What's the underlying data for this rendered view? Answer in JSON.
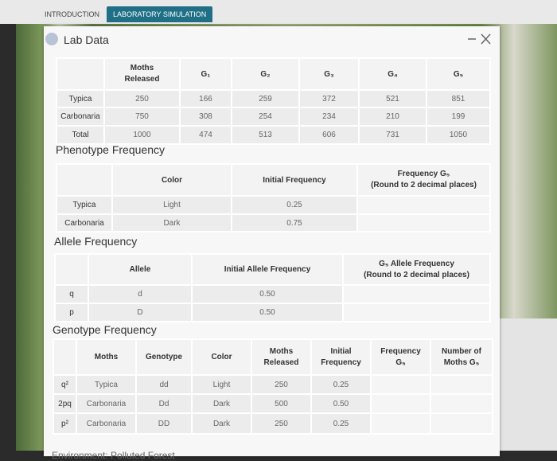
{
  "tabs": [
    "INTRODUCTION",
    "LABORATORY SIMULATION"
  ],
  "panel": {
    "title": "Lab Data",
    "footer": "Environment: Polluted Forest"
  },
  "results": {
    "columns": [
      [
        "Moths",
        "Released"
      ],
      "G₁",
      "G₂",
      "G₃",
      "G₄",
      "G₅"
    ],
    "rows": [
      {
        "label": "Typica",
        "cells": [
          "250",
          "166",
          "259",
          "372",
          "521",
          "851"
        ]
      },
      {
        "label": "Carbonaria",
        "cells": [
          "750",
          "308",
          "254",
          "234",
          "210",
          "199"
        ]
      },
      {
        "label": "Total",
        "cells": [
          "1000",
          "474",
          "513",
          "606",
          "731",
          "1050"
        ]
      }
    ]
  },
  "phenotype": {
    "title": "Phenotype Frequency",
    "columns": [
      "Color",
      "Initial Frequency",
      [
        "Frequency G₅",
        "(Round to 2 decimal places)"
      ]
    ],
    "rows": [
      {
        "label": "Typica",
        "cells": [
          "Light",
          "0.25"
        ]
      },
      {
        "label": "Carbonaria",
        "cells": [
          "Dark",
          "0.75"
        ]
      }
    ]
  },
  "allele": {
    "title": "Allele Frequency",
    "columns": [
      "Allele",
      "Initial Allele Frequency",
      [
        "G₅ Allele Frequency",
        "(Round to 2 decimal places)"
      ]
    ],
    "rows": [
      {
        "label": "q",
        "cells": [
          "d",
          "0.50"
        ]
      },
      {
        "label": "p",
        "cells": [
          "D",
          "0.50"
        ]
      }
    ]
  },
  "genotype": {
    "title": "Genotype Frequency",
    "columns": [
      "Moths",
      "Genotype",
      "Color",
      [
        "Moths",
        "Released"
      ],
      [
        "Initial",
        "Frequency"
      ],
      [
        "Frequency",
        "G₅"
      ],
      [
        "Number of",
        "Moths G₅"
      ]
    ],
    "rows": [
      {
        "label": "q²",
        "cells": [
          "Typica",
          "dd",
          "Light",
          "250",
          "0.25"
        ]
      },
      {
        "label": "2pq",
        "cells": [
          "Carbonaria",
          "Dd",
          "Dark",
          "500",
          "0.50"
        ]
      },
      {
        "label": "p²",
        "cells": [
          "Carbonaria",
          "DD",
          "Dark",
          "250",
          "0.25"
        ]
      }
    ]
  }
}
